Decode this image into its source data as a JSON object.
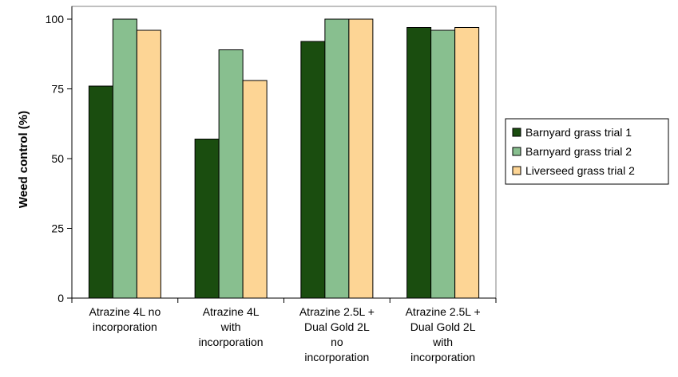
{
  "chart_data": {
    "type": "bar",
    "title": "",
    "xlabel": "",
    "ylabel": "Weed control (%)",
    "ylim": [
      0,
      100
    ],
    "yticks": [
      0,
      25,
      50,
      75,
      100
    ],
    "grid": false,
    "legend_position": "right",
    "categories": [
      [
        "Atrazine 4L no",
        "incorporation"
      ],
      [
        "Atrazine 4L",
        "with",
        "incorporation"
      ],
      [
        "Atrazine 2.5L +",
        "Dual Gold 2L",
        "no",
        "incorporation"
      ],
      [
        "Atrazine 2.5L +",
        "Dual Gold 2L",
        "with",
        "incorporation"
      ]
    ],
    "series": [
      {
        "name": "Barnyard grass trial 1",
        "color": "#1a4d0f",
        "values": [
          76,
          57,
          92,
          97
        ]
      },
      {
        "name": "Barnyard grass trial 2",
        "color": "#88bf8f",
        "values": [
          100,
          89,
          100,
          96
        ]
      },
      {
        "name": "Liverseed grass trial 2",
        "color": "#fdd595",
        "values": [
          96,
          78,
          100,
          97
        ]
      }
    ]
  }
}
